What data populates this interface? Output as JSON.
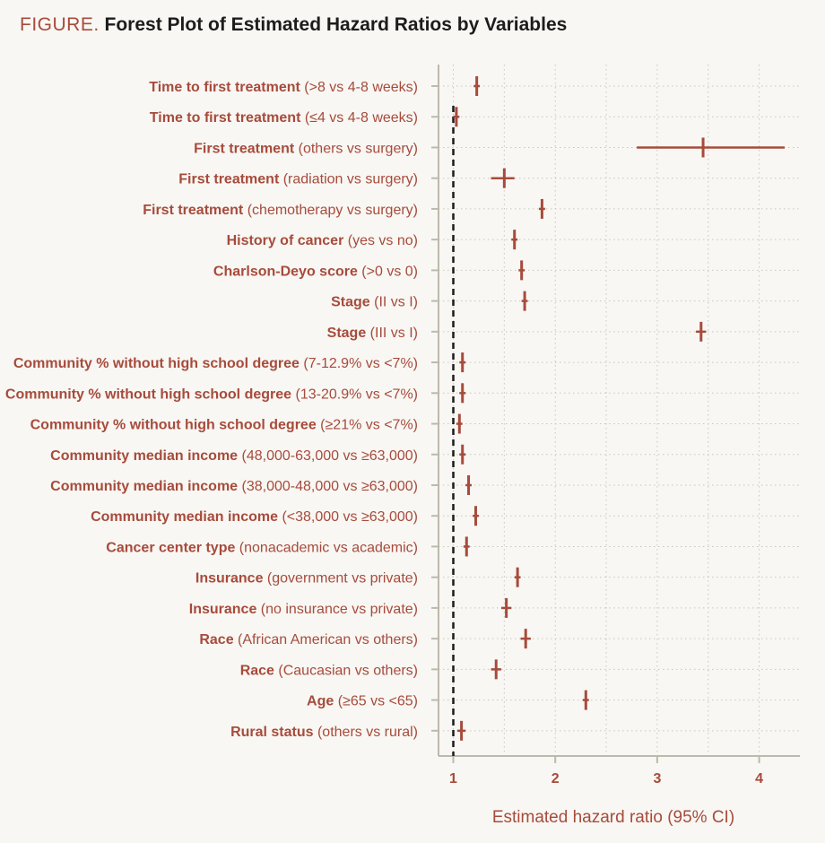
{
  "figure": {
    "label": "FIGURE.",
    "title": "Forest Plot of Estimated Hazard Ratios by Variables"
  },
  "colors": {
    "accent": "#a74b3c",
    "axis": "#bdb9ac",
    "grid": "#c9c6bb",
    "reference": "#1c1c1c",
    "background": "#f8f7f3"
  },
  "chart_data": {
    "type": "forest",
    "title": "Forest Plot of Estimated Hazard Ratios by Variables",
    "xlabel": "Estimated hazard ratio (95% CI)",
    "ylabel": "",
    "xlim": [
      0.87,
      4.25
    ],
    "xticks": [
      1,
      2,
      3,
      4
    ],
    "xtick_labels": [
      "1",
      "2",
      "3",
      "4"
    ],
    "minor_gridlines": [
      1.5,
      2.5,
      3.5
    ],
    "reference_line": 1,
    "grid": true,
    "rows": [
      {
        "variable": "Time to first treatment",
        "comparison": "(>8 vs 4-8 weeks)",
        "hr": 1.23,
        "lo": 1.2,
        "hi": 1.26
      },
      {
        "variable": "Time to first treatment",
        "comparison": "(≤4 vs 4-8 weeks)",
        "hr": 1.03,
        "lo": 1.0,
        "hi": 1.06
      },
      {
        "variable": "First treatment",
        "comparison": "(others vs surgery)",
        "hr": 3.45,
        "lo": 2.8,
        "hi": 4.25
      },
      {
        "variable": "First treatment",
        "comparison": "(radiation vs surgery)",
        "hr": 1.5,
        "lo": 1.37,
        "hi": 1.6
      },
      {
        "variable": "First treatment",
        "comparison": "(chemotherapy vs surgery)",
        "hr": 1.87,
        "lo": 1.84,
        "hi": 1.9
      },
      {
        "variable": "History of cancer",
        "comparison": "(yes vs no)",
        "hr": 1.6,
        "lo": 1.57,
        "hi": 1.63
      },
      {
        "variable": "Charlson-Deyo score",
        "comparison": "(>0 vs 0)",
        "hr": 1.67,
        "lo": 1.64,
        "hi": 1.7
      },
      {
        "variable": "Stage",
        "comparison": "(II vs I)",
        "hr": 1.7,
        "lo": 1.67,
        "hi": 1.73
      },
      {
        "variable": "Stage",
        "comparison": "(III vs I)",
        "hr": 3.43,
        "lo": 3.38,
        "hi": 3.48
      },
      {
        "variable": "Community % without high school degree",
        "comparison": "(7-12.9% vs <7%)",
        "hr": 1.09,
        "lo": 1.06,
        "hi": 1.12
      },
      {
        "variable": "Community % without high school degree",
        "comparison": "(13-20.9% vs <7%)",
        "hr": 1.09,
        "lo": 1.06,
        "hi": 1.12
      },
      {
        "variable": "Community % without high school degree",
        "comparison": "(≥21% vs <7%)",
        "hr": 1.06,
        "lo": 1.03,
        "hi": 1.09
      },
      {
        "variable": "Community median income",
        "comparison": "(48,000-63,000 vs ≥63,000)",
        "hr": 1.09,
        "lo": 1.06,
        "hi": 1.12
      },
      {
        "variable": "Community median income",
        "comparison": "(38,000-48,000 vs ≥63,000)",
        "hr": 1.15,
        "lo": 1.12,
        "hi": 1.18
      },
      {
        "variable": "Community median income",
        "comparison": "(<38,000 vs ≥63,000)",
        "hr": 1.22,
        "lo": 1.19,
        "hi": 1.25
      },
      {
        "variable": "Cancer center type",
        "comparison": "(nonacademic vs academic)",
        "hr": 1.13,
        "lo": 1.1,
        "hi": 1.16
      },
      {
        "variable": "Insurance",
        "comparison": "(government vs private)",
        "hr": 1.63,
        "lo": 1.6,
        "hi": 1.66
      },
      {
        "variable": "Insurance",
        "comparison": "(no insurance vs private)",
        "hr": 1.52,
        "lo": 1.47,
        "hi": 1.57
      },
      {
        "variable": "Race",
        "comparison": "(African American vs others)",
        "hr": 1.71,
        "lo": 1.66,
        "hi": 1.76
      },
      {
        "variable": "Race",
        "comparison": "(Caucasian vs others)",
        "hr": 1.42,
        "lo": 1.37,
        "hi": 1.47
      },
      {
        "variable": "Age",
        "comparison": "(≥65 vs <65)",
        "hr": 2.3,
        "lo": 2.27,
        "hi": 2.33
      },
      {
        "variable": "Rural status",
        "comparison": "(others vs rural)",
        "hr": 1.08,
        "lo": 1.04,
        "hi": 1.12
      }
    ]
  }
}
